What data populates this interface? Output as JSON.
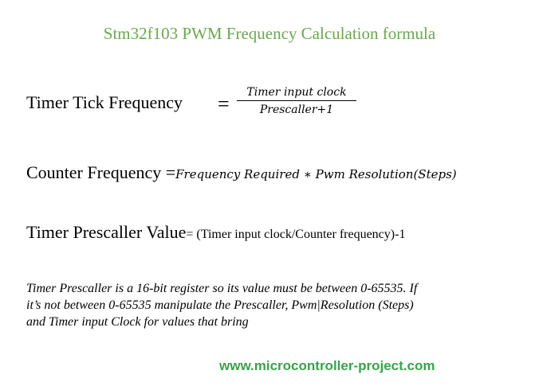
{
  "title": "Stm32f103 PWM Frequency Calculation formula",
  "formula1": {
    "label": "Timer Tick Frequency",
    "equals": "=",
    "numerator": "Timer input clock",
    "denominator": "Prescaller+1"
  },
  "formula2": {
    "label": "Counter Frequency =",
    "expression": "Frequency Required ∗ Pwm Resolution(Steps)"
  },
  "formula3": {
    "label": "Timer Prescaller Value",
    "expression": "= (Timer input clock/Counter frequency)-1"
  },
  "note": {
    "line1": "Timer Prescaller is a 16-bit register so its value must be between 0-65535. If",
    "line2": "it’s not between 0-65535 manipulate the Prescaller, Pwm|Resolution (Steps)",
    "line3": "and Timer input Clock for values that bring"
  },
  "website": "www.microcontroller-project.com",
  "colors": {
    "title": "#6aa84f",
    "website": "#38a24a",
    "text": "#000000"
  }
}
